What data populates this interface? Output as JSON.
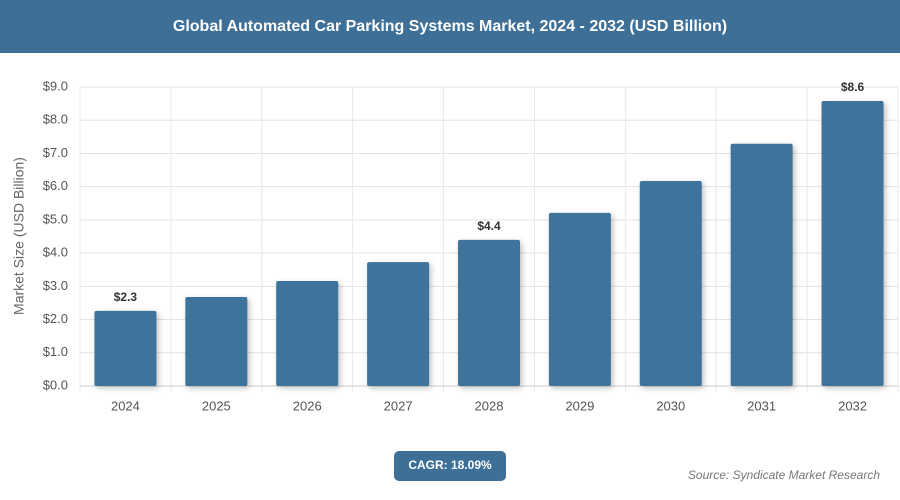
{
  "chart_data": {
    "type": "bar",
    "title": "Global Automated Car Parking Systems Market, 2024 - 2032 (USD Billion)",
    "y_label": "Market Size (USD Billion)",
    "categories": [
      "2024",
      "2025",
      "2026",
      "2027",
      "2028",
      "2029",
      "2030",
      "2031",
      "2032"
    ],
    "values": [
      2.26,
      2.68,
      3.16,
      3.73,
      4.4,
      5.21,
      6.17,
      7.29,
      8.58
    ],
    "value_labels": [
      "$2.3",
      null,
      null,
      null,
      "$4.4",
      null,
      null,
      null,
      "$8.6"
    ],
    "color": "#3e739b",
    "ylim": [
      0,
      9
    ],
    "yticks": [
      {
        "value": 0,
        "label": "$0.0"
      },
      {
        "value": 1,
        "label": "$1.0"
      },
      {
        "value": 2,
        "label": "$2.0"
      },
      {
        "value": 3,
        "label": "$3.0"
      },
      {
        "value": 4,
        "label": "$4.0"
      },
      {
        "value": 5,
        "label": "$5.0"
      },
      {
        "value": 6,
        "label": "$6.0"
      },
      {
        "value": 7,
        "label": "$7.0"
      },
      {
        "value": 8,
        "label": "$8.0"
      },
      {
        "value": 9,
        "label": "$9.0"
      }
    ],
    "grid": true,
    "cagr": "CAGR: 18.09%",
    "source": "Source: Syndicate Market Research"
  }
}
